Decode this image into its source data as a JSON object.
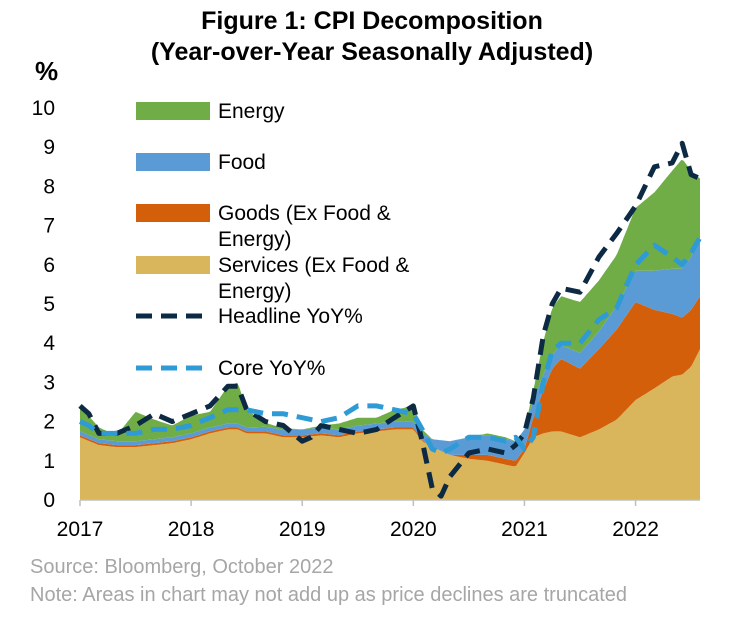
{
  "title_line1": "Figure 1: CPI Decomposition",
  "title_line2": "(Year-over-Year Seasonally Adjusted)",
  "source": "Source: Bloomberg, October 2022",
  "note": "Note: Areas in chart may not add up as price declines are truncated",
  "chart_data": {
    "type": "area",
    "ylabel": "%",
    "ylim": [
      0,
      10
    ],
    "xlim": [
      2017.0,
      2022.58
    ],
    "y_ticks": [
      0,
      1,
      2,
      3,
      4,
      5,
      6,
      7,
      8,
      9,
      10
    ],
    "x_ticks": [
      2017,
      2018,
      2019,
      2020,
      2021,
      2022
    ],
    "legend_position": "upper-left inside plot",
    "series": [
      {
        "name": "Services (Ex Food & Energy)",
        "color": "#d9b55b",
        "x": [
          2017.0,
          2017.17,
          2017.33,
          2017.5,
          2017.67,
          2017.83,
          2018.0,
          2018.17,
          2018.33,
          2018.42,
          2018.5,
          2018.67,
          2018.83,
          2019.0,
          2019.17,
          2019.33,
          2019.5,
          2019.67,
          2019.83,
          2020.0,
          2020.08,
          2020.17,
          2020.25,
          2020.33,
          2020.5,
          2020.67,
          2020.83,
          2020.92,
          2021.0,
          2021.08,
          2021.17,
          2021.25,
          2021.33,
          2021.5,
          2021.67,
          2021.83,
          2022.0,
          2022.17,
          2022.33,
          2022.42,
          2022.5,
          2022.58
        ],
        "values": [
          1.6,
          1.4,
          1.35,
          1.35,
          1.4,
          1.45,
          1.55,
          1.7,
          1.8,
          1.8,
          1.7,
          1.7,
          1.6,
          1.6,
          1.65,
          1.6,
          1.7,
          1.75,
          1.8,
          1.8,
          1.5,
          1.35,
          1.25,
          1.15,
          1.05,
          1.0,
          0.9,
          0.85,
          1.2,
          1.6,
          1.7,
          1.75,
          1.75,
          1.6,
          1.8,
          2.05,
          2.55,
          2.85,
          3.15,
          3.2,
          3.4,
          3.85
        ]
      },
      {
        "name": "Goods (Ex Food & Energy)",
        "color": "#d35f0b",
        "x": [
          2017.0,
          2017.5,
          2018.0,
          2018.5,
          2019.0,
          2019.5,
          2020.0,
          2020.17,
          2020.33,
          2020.5,
          2020.67,
          2020.83,
          2020.92,
          2021.0,
          2021.08,
          2021.17,
          2021.25,
          2021.33,
          2021.5,
          2021.67,
          2021.83,
          2022.0,
          2022.17,
          2022.33,
          2022.42,
          2022.5,
          2022.58
        ],
        "values": [
          0.05,
          0.05,
          0.05,
          0.05,
          0.05,
          0.05,
          0.05,
          0.0,
          0.0,
          0.1,
          0.15,
          0.15,
          0.15,
          0.1,
          0.5,
          1.1,
          1.6,
          1.85,
          1.75,
          2.05,
          2.3,
          2.5,
          2.0,
          1.6,
          1.45,
          1.45,
          1.35
        ]
      },
      {
        "name": "Food",
        "color": "#5b9bd5",
        "x": [
          2017.0,
          2017.5,
          2018.0,
          2018.5,
          2019.0,
          2019.5,
          2020.0,
          2020.17,
          2020.33,
          2020.5,
          2020.67,
          2020.83,
          2020.92,
          2021.0,
          2021.08,
          2021.17,
          2021.25,
          2021.33,
          2021.5,
          2021.67,
          2021.83,
          2022.0,
          2022.17,
          2022.33,
          2022.42,
          2022.5,
          2022.58
        ],
        "values": [
          0.1,
          0.1,
          0.1,
          0.1,
          0.15,
          0.15,
          0.15,
          0.2,
          0.35,
          0.45,
          0.5,
          0.5,
          0.5,
          0.5,
          0.45,
          0.4,
          0.35,
          0.35,
          0.4,
          0.45,
          0.6,
          0.8,
          1.0,
          1.15,
          1.25,
          1.35,
          1.5
        ]
      },
      {
        "name": "Energy",
        "color": "#70ad47",
        "x": [
          2017.0,
          2017.17,
          2017.33,
          2017.5,
          2017.67,
          2017.83,
          2018.0,
          2018.17,
          2018.33,
          2018.42,
          2018.5,
          2018.67,
          2018.83,
          2019.0,
          2019.17,
          2019.33,
          2019.5,
          2019.67,
          2019.83,
          2020.0,
          2020.08,
          2020.17,
          2020.33,
          2020.5,
          2020.67,
          2020.83,
          2020.92,
          2021.0,
          2021.08,
          2021.17,
          2021.25,
          2021.33,
          2021.5,
          2021.67,
          2021.83,
          2022.0,
          2022.17,
          2022.33,
          2022.42,
          2022.5,
          2022.58
        ],
        "values": [
          0.65,
          0.3,
          0.15,
          0.75,
          0.5,
          0.3,
          0.45,
          0.4,
          0.95,
          1.05,
          0.45,
          0.1,
          0.05,
          0.0,
          0.05,
          0.15,
          0.2,
          0.15,
          0.3,
          0.4,
          0.1,
          0.0,
          0.0,
          0.0,
          0.05,
          0.05,
          0.0,
          0.0,
          0.25,
          0.85,
          1.2,
          1.25,
          1.3,
          1.3,
          1.3,
          1.6,
          2.0,
          2.5,
          2.8,
          2.2,
          1.5
        ]
      },
      {
        "name": "Headline YoY%",
        "color": "#0d2a45",
        "style": "dashed",
        "x": [
          2017.0,
          2017.08,
          2017.17,
          2017.33,
          2017.5,
          2017.67,
          2017.83,
          2018.0,
          2018.17,
          2018.33,
          2018.42,
          2018.5,
          2018.67,
          2018.83,
          2019.0,
          2019.08,
          2019.17,
          2019.33,
          2019.5,
          2019.67,
          2019.83,
          2020.0,
          2020.08,
          2020.17,
          2020.25,
          2020.33,
          2020.5,
          2020.67,
          2020.83,
          2020.92,
          2021.0,
          2021.08,
          2021.17,
          2021.25,
          2021.33,
          2021.5,
          2021.67,
          2021.83,
          2022.0,
          2022.17,
          2022.33,
          2022.42,
          2022.5,
          2022.58
        ],
        "values": [
          2.4,
          2.2,
          1.7,
          1.7,
          1.9,
          2.2,
          2.0,
          2.2,
          2.4,
          2.9,
          2.9,
          2.3,
          2.0,
          1.9,
          1.5,
          1.6,
          1.9,
          1.8,
          1.7,
          1.8,
          2.1,
          2.4,
          1.5,
          0.3,
          0.1,
          0.6,
          1.2,
          1.3,
          1.2,
          1.4,
          1.7,
          2.6,
          4.2,
          5.0,
          5.4,
          5.3,
          6.2,
          6.8,
          7.5,
          8.5,
          8.6,
          9.1,
          8.3,
          8.2
        ]
      },
      {
        "name": "Core YoY%",
        "color": "#2e9bd6",
        "style": "dashed",
        "x": [
          2017.0,
          2017.08,
          2017.17,
          2017.33,
          2017.5,
          2017.67,
          2017.83,
          2018.0,
          2018.17,
          2018.33,
          2018.5,
          2018.67,
          2018.83,
          2019.0,
          2019.17,
          2019.33,
          2019.5,
          2019.67,
          2019.83,
          2020.0,
          2020.08,
          2020.17,
          2020.25,
          2020.33,
          2020.5,
          2020.67,
          2020.83,
          2020.92,
          2021.0,
          2021.08,
          2021.17,
          2021.25,
          2021.33,
          2021.5,
          2021.67,
          2021.83,
          2022.0,
          2022.17,
          2022.33,
          2022.42,
          2022.5,
          2022.58
        ],
        "values": [
          2.0,
          1.9,
          1.7,
          1.7,
          1.7,
          1.8,
          1.8,
          1.9,
          2.1,
          2.3,
          2.3,
          2.2,
          2.2,
          2.1,
          2.0,
          2.1,
          2.4,
          2.4,
          2.3,
          2.2,
          1.8,
          1.3,
          1.2,
          1.3,
          1.6,
          1.6,
          1.5,
          1.6,
          1.3,
          1.6,
          3.0,
          3.8,
          4.0,
          4.0,
          4.6,
          4.9,
          6.0,
          6.5,
          6.2,
          6.0,
          6.3,
          6.7
        ]
      }
    ]
  }
}
